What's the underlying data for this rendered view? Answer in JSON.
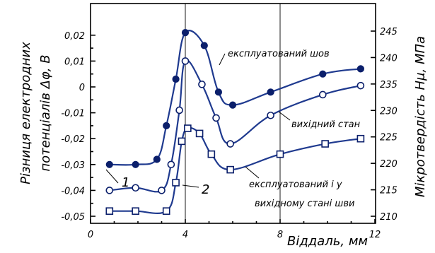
{
  "chart_data": {
    "type": "line",
    "xlabel": "Віддаль, мм",
    "ylabel_left": "Різниця електродних потенціалів Δφ, В",
    "ylabel_right": "Мікротвердість Hμ, МПа",
    "xlim": [
      0,
      12
    ],
    "ylim_left": [
      -0.05,
      0.025
    ],
    "ylim_right": [
      210,
      247
    ],
    "x_ticks": [
      "0",
      "4",
      "8",
      "12"
    ],
    "y_left_ticks": [
      "0,02",
      "0,01",
      "0",
      "-0,01",
      "-0,02",
      "-0,03",
      "-0,04",
      "-0,05"
    ],
    "y_right_ticks": [
      "245",
      "240",
      "235",
      "230",
      "225",
      "220",
      "215",
      "210"
    ],
    "grid_x": [
      4,
      8
    ],
    "series": [
      {
        "name": "експлуатований шов",
        "marker": "filled-circle",
        "x": [
          0.8,
          1.9,
          2.8,
          3.2,
          3.6,
          4.0,
          4.8,
          5.4,
          6.0,
          7.6,
          9.8,
          11.4
        ],
        "y": [
          -0.03,
          -0.03,
          -0.028,
          -0.015,
          0.003,
          0.021,
          0.016,
          -0.002,
          -0.007,
          -0.002,
          0.005,
          0.007
        ]
      },
      {
        "name": "вихідний стан",
        "marker": "open-circle",
        "x": [
          0.8,
          1.9,
          3.0,
          3.4,
          3.75,
          4.0,
          4.7,
          5.3,
          5.9,
          7.6,
          9.8,
          11.4
        ],
        "y": [
          -0.04,
          -0.039,
          -0.04,
          -0.03,
          -0.009,
          0.01,
          0.001,
          -0.012,
          -0.022,
          -0.011,
          -0.003,
          0.0005
        ]
      },
      {
        "name": "експлуатований і у вихідному стані шви",
        "marker": "open-square",
        "x": [
          0.8,
          1.9,
          3.2,
          3.6,
          3.85,
          4.1,
          4.6,
          5.1,
          5.9,
          8.0,
          9.9,
          11.4
        ],
        "y": [
          -0.048,
          -0.048,
          -0.048,
          -0.037,
          -0.021,
          -0.016,
          -0.018,
          -0.026,
          -0.032,
          -0.026,
          -0.022,
          -0.02
        ]
      }
    ],
    "annotations": [
      {
        "text": "експлуатований шов",
        "series": 0
      },
      {
        "text": "вихідний стан",
        "series": 1
      },
      {
        "text": "експлуатований і у",
        "series": 2
      },
      {
        "text": "вихідному стані шви",
        "series": 2
      },
      {
        "text": "1"
      },
      {
        "text": "2"
      }
    ]
  }
}
